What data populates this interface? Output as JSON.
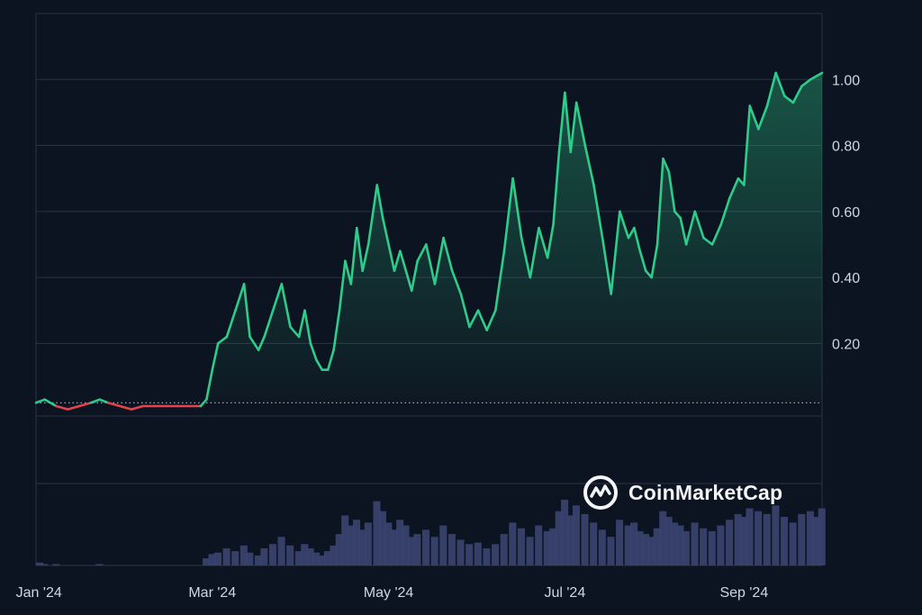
{
  "watermark": {
    "brand": "CoinMarketCap"
  },
  "colors": {
    "background": "#0d1421",
    "grid": "#2a3244",
    "up_line": "#2ecc8a",
    "down_line": "#e2434c",
    "volume": "#3a4470"
  },
  "chart_data": {
    "type": "area",
    "title": "",
    "xlabel": "",
    "ylabel": "",
    "x_ticks": [
      "Jan '24",
      "Mar '24",
      "May '24",
      "Jul '24",
      "Sep '24"
    ],
    "y_ticks": [
      "0.20",
      "0.40",
      "0.60",
      "0.80",
      "1.00"
    ],
    "ylim": [
      -0.02,
      1.2
    ],
    "baseline": 0.02,
    "grid": "horizontal",
    "y_axis_position": "right",
    "series": [
      {
        "x": [
          "2023-12-31",
          "2024-01-03",
          "2024-01-07",
          "2024-01-11",
          "2024-01-15",
          "2024-01-19",
          "2024-01-22",
          "2024-01-25",
          "2024-01-29",
          "2024-02-02",
          "2024-02-06",
          "2024-02-10",
          "2024-02-14",
          "2024-02-18",
          "2024-02-22",
          "2024-02-26",
          "2024-02-28",
          "2024-03-01",
          "2024-03-03",
          "2024-03-06",
          "2024-03-09",
          "2024-03-12",
          "2024-03-14",
          "2024-03-17",
          "2024-03-19",
          "2024-03-22",
          "2024-03-25",
          "2024-03-28",
          "2024-03-31",
          "2024-04-02",
          "2024-04-04",
          "2024-04-06",
          "2024-04-08",
          "2024-04-10",
          "2024-04-12",
          "2024-04-14",
          "2024-04-16",
          "2024-04-18",
          "2024-04-20",
          "2024-04-22",
          "2024-04-24",
          "2024-04-27",
          "2024-04-29",
          "2024-05-01",
          "2024-05-03",
          "2024-05-05",
          "2024-05-07",
          "2024-05-09",
          "2024-05-11",
          "2024-05-14",
          "2024-05-17",
          "2024-05-20",
          "2024-05-23",
          "2024-05-26",
          "2024-05-29",
          "2024-06-01",
          "2024-06-04",
          "2024-06-07",
          "2024-06-10",
          "2024-06-13",
          "2024-06-16",
          "2024-06-19",
          "2024-06-22",
          "2024-06-25",
          "2024-06-27",
          "2024-06-29",
          "2024-07-01",
          "2024-07-03",
          "2024-07-05",
          "2024-07-08",
          "2024-07-11",
          "2024-07-14",
          "2024-07-17",
          "2024-07-20",
          "2024-07-23",
          "2024-07-25",
          "2024-07-27",
          "2024-07-29",
          "2024-07-31",
          "2024-08-02",
          "2024-08-04",
          "2024-08-06",
          "2024-08-08",
          "2024-08-10",
          "2024-08-12",
          "2024-08-15",
          "2024-08-18",
          "2024-08-21",
          "2024-08-24",
          "2024-08-27",
          "2024-08-30",
          "2024-09-01",
          "2024-09-03",
          "2024-09-06",
          "2024-09-09",
          "2024-09-12",
          "2024-09-15",
          "2024-09-18",
          "2024-09-21",
          "2024-09-24",
          "2024-09-26",
          "2024-09-28"
        ],
        "values": [
          0.02,
          0.03,
          0.01,
          0.0,
          0.01,
          0.02,
          0.03,
          0.02,
          0.01,
          0.0,
          0.01,
          0.01,
          0.01,
          0.01,
          0.01,
          0.01,
          0.03,
          0.12,
          0.2,
          0.22,
          0.3,
          0.38,
          0.22,
          0.18,
          0.22,
          0.3,
          0.38,
          0.25,
          0.22,
          0.3,
          0.2,
          0.15,
          0.12,
          0.12,
          0.18,
          0.3,
          0.45,
          0.38,
          0.55,
          0.42,
          0.5,
          0.68,
          0.58,
          0.5,
          0.42,
          0.48,
          0.42,
          0.36,
          0.45,
          0.5,
          0.38,
          0.52,
          0.42,
          0.35,
          0.25,
          0.3,
          0.24,
          0.3,
          0.48,
          0.7,
          0.52,
          0.4,
          0.55,
          0.46,
          0.56,
          0.78,
          0.96,
          0.78,
          0.93,
          0.8,
          0.68,
          0.52,
          0.35,
          0.6,
          0.52,
          0.55,
          0.48,
          0.42,
          0.4,
          0.5,
          0.76,
          0.72,
          0.6,
          0.58,
          0.5,
          0.6,
          0.52,
          0.5,
          0.56,
          0.64,
          0.7,
          0.68,
          0.92,
          0.85,
          0.92,
          1.02,
          0.95,
          0.93,
          0.98,
          1.0,
          1.01,
          1.02
        ]
      }
    ],
    "volume": [
      2,
      1,
      1,
      0,
      0,
      0,
      1,
      0,
      0,
      0,
      0,
      0,
      0,
      0,
      0,
      0,
      5,
      8,
      9,
      12,
      10,
      14,
      9,
      7,
      12,
      15,
      20,
      14,
      10,
      15,
      12,
      9,
      7,
      10,
      14,
      22,
      35,
      28,
      32,
      25,
      30,
      45,
      38,
      30,
      25,
      32,
      28,
      20,
      22,
      25,
      20,
      28,
      22,
      18,
      15,
      16,
      12,
      15,
      22,
      30,
      26,
      20,
      28,
      24,
      26,
      38,
      46,
      35,
      42,
      36,
      30,
      25,
      20,
      32,
      28,
      30,
      24,
      22,
      20,
      26,
      38,
      34,
      30,
      28,
      24,
      30,
      26,
      24,
      28,
      32,
      36,
      34,
      40,
      38,
      36,
      42,
      34,
      30,
      36,
      38,
      34,
      40
    ]
  }
}
